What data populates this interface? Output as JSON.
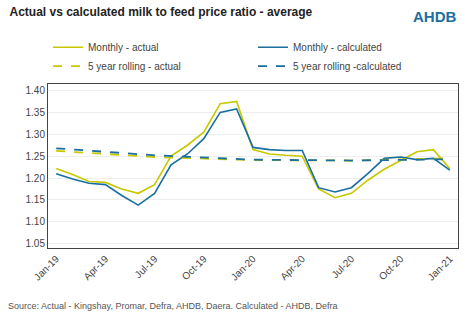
{
  "chart_data": {
    "type": "line",
    "title": "Actual vs calculated milk to feed price ratio - average",
    "categories": [
      "Jan-19",
      null,
      null,
      "Apr-19",
      null,
      null,
      "Jul-19",
      null,
      null,
      "Oct-19",
      null,
      null,
      "Jan-20",
      null,
      null,
      "Apr-20",
      null,
      null,
      "Jul-20",
      null,
      null,
      "Oct-20",
      null,
      null,
      "Jan-21"
    ],
    "series": [
      {
        "name": "Monthly - actual",
        "color": "#c8c800",
        "line_style": "solid",
        "values": [
          1.222,
          1.208,
          1.192,
          1.19,
          1.175,
          1.165,
          1.185,
          1.25,
          1.275,
          1.305,
          1.37,
          1.375,
          1.265,
          1.255,
          1.252,
          1.25,
          1.175,
          1.155,
          1.165,
          1.195,
          1.22,
          1.24,
          1.26,
          1.265,
          1.222
        ]
      },
      {
        "name": "Monthly - calculated",
        "color": "#1a6ea0",
        "line_style": "solid",
        "values": [
          1.21,
          1.198,
          1.188,
          1.185,
          1.16,
          1.138,
          1.165,
          1.23,
          1.255,
          1.29,
          1.35,
          1.358,
          1.27,
          1.265,
          1.263,
          1.263,
          1.178,
          1.168,
          1.178,
          1.21,
          1.245,
          1.248,
          1.242,
          1.245,
          1.218
        ]
      },
      {
        "name": "5 year rolling - actual",
        "color": "#c8c800",
        "line_style": "dashed",
        "x": [
          "Jan-19",
          "Jul-19",
          "Jan-20",
          "Jul-20",
          "Jan-21"
        ],
        "values": [
          1.262,
          1.248,
          1.241,
          1.24,
          1.245
        ]
      },
      {
        "name": "5 year rolling -calculated",
        "color": "#1a6ea0",
        "line_style": "dashed",
        "x": [
          "Jan-19",
          "Jul-19",
          "Jan-20",
          "Jul-20",
          "Jan-21"
        ],
        "values": [
          1.268,
          1.252,
          1.242,
          1.24,
          1.243
        ]
      }
    ],
    "ylim": [
      1.04,
      1.415
    ],
    "yticks": [
      1.05,
      {
        "value": 1.1,
        "label": "1.10"
      },
      1.15,
      {
        "value": 1.2,
        "label": "1.20"
      },
      1.25,
      {
        "value": 1.3,
        "label": "1.30"
      },
      1.35,
      {
        "value": 1.4,
        "label": "1.40"
      }
    ],
    "grid": true,
    "legend": "top",
    "annotations": [
      {
        "text": "AHDB",
        "color": "#1a6ea0"
      },
      {
        "text": "Source: Actual - Kingshay, Promar, Defra, AHDB, Daera. Calculated - AHDB, Defra"
      }
    ]
  }
}
